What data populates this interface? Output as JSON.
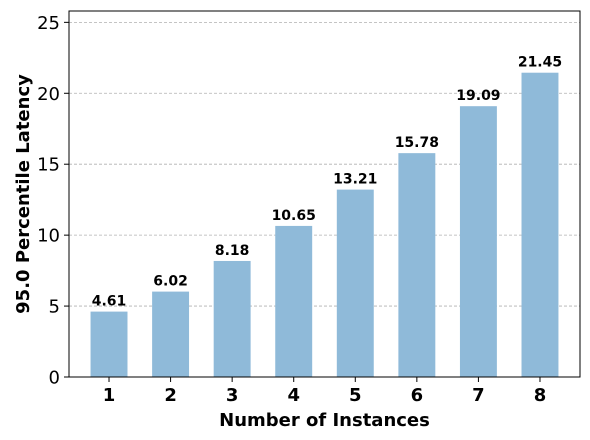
{
  "chart_data": {
    "type": "bar",
    "categories": [
      "1",
      "2",
      "3",
      "4",
      "5",
      "6",
      "7",
      "8"
    ],
    "values": [
      4.61,
      6.02,
      8.18,
      10.65,
      13.21,
      15.78,
      19.09,
      21.45
    ],
    "data_labels": [
      "4.61",
      "6.02",
      "8.18",
      "10.65",
      "13.21",
      "15.78",
      "19.09",
      "21.45"
    ],
    "title": "",
    "xlabel": "Number of Instances",
    "ylabel": "95.0 Percentile Latency",
    "ylim": [
      0,
      25.8
    ],
    "yticks": [
      0,
      5,
      10,
      15,
      20,
      25
    ],
    "ytick_labels": [
      "0",
      "5",
      "10",
      "15",
      "20",
      "25"
    ],
    "grid": "y-dashed",
    "bar_color": "#8fbad9",
    "grid_color": "#b0b0b0"
  }
}
